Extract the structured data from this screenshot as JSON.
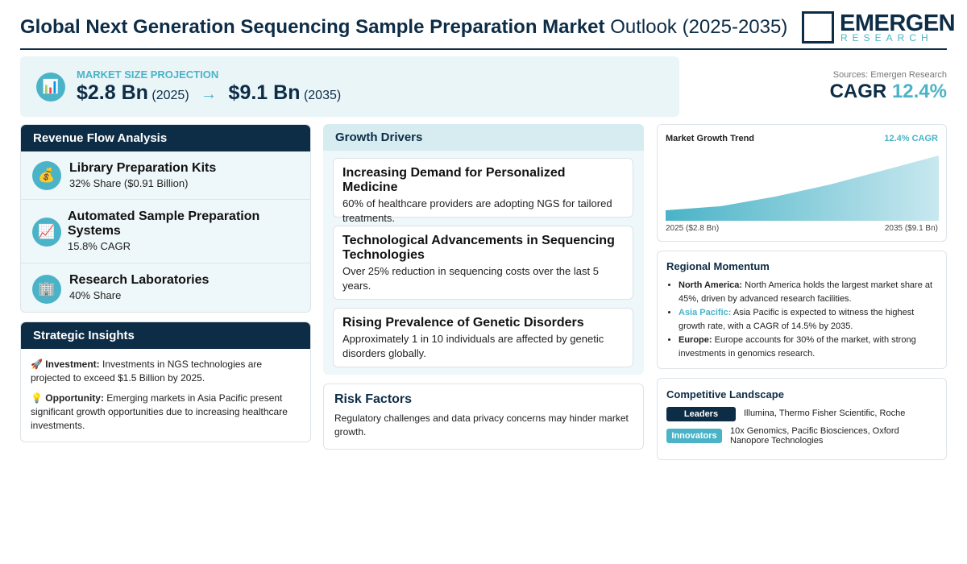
{
  "header": {
    "title_bold": "Global Next Generation Sequencing Sample Preparation Market",
    "title_rest": "Outlook (2025-2035)",
    "logo_main": "EMERGEN",
    "logo_sub": "RESEARCH"
  },
  "projection": {
    "icon": "📊",
    "label": "MARKET SIZE PROJECTION",
    "start_value": "$2.8 Bn",
    "start_year": "(2025)",
    "arrow": "→",
    "end_value": "$9.1 Bn",
    "end_year": "(2035)"
  },
  "summary": {
    "sources": "Sources: Emergen Research",
    "cagr_label": "CAGR",
    "cagr_value": "12.4%"
  },
  "revenue_flow": {
    "title": "Revenue Flow Analysis",
    "items": [
      {
        "icon": "💰",
        "name": "Library Preparation Kits",
        "detail": "32% Share ($0.91 Billion)"
      },
      {
        "icon": "📈",
        "name": "Automated Sample Preparation Systems",
        "detail": "15.8% CAGR"
      },
      {
        "icon": "🏢",
        "name": "Research Laboratories",
        "detail": "40% Share"
      }
    ]
  },
  "strategic_insights": {
    "title": "Strategic Insights",
    "items": [
      {
        "icon": "🚀",
        "label": "Investment:",
        "text": "Investments in NGS technologies are projected to exceed $1.5 Billion by 2025."
      },
      {
        "icon": "💡",
        "label": "Opportunity:",
        "text": "Emerging markets in Asia Pacific present significant growth opportunities due to increasing healthcare investments."
      }
    ]
  },
  "growth_drivers": {
    "title": "Growth Drivers",
    "items": [
      {
        "title": "Increasing Demand for Personalized Medicine",
        "text": "60% of healthcare providers are adopting NGS for tailored treatments."
      },
      {
        "title": "Technological Advancements in Sequencing Technologies",
        "text": "Over 25% reduction in sequencing costs over the last 5 years."
      },
      {
        "title": "Rising Prevalence of Genetic Disorders",
        "text": "Approximately 1 in 10 individuals are affected by genetic disorders globally."
      }
    ]
  },
  "risk_factors": {
    "title": "Risk Factors",
    "text": "Regulatory challenges and data privacy concerns may hinder market growth."
  },
  "trend": {
    "title": "Market Growth Trend",
    "badge": "12.4% CAGR",
    "start_label": "2025 ($2.8 Bn)",
    "end_label": "2035 ($9.1 Bn)"
  },
  "regional": {
    "title": "Regional Momentum",
    "items": [
      {
        "region": "North America:",
        "text": "North America holds the largest market share at 45%, driven by advanced research facilities."
      },
      {
        "region": "Asia Pacific:",
        "text": "Asia Pacific is expected to witness the highest growth rate, with a CAGR of 14.5% by 2035."
      },
      {
        "region": "Europe:",
        "text": "Europe accounts for 30% of the market, with strong investments in genomics research."
      }
    ]
  },
  "competitive": {
    "title": "Competitive Landscape",
    "rows": [
      {
        "tag": "Leaders",
        "text": "Illumina, Thermo Fisher Scientific, Roche"
      },
      {
        "tag": "Innovators",
        "text": "10x Genomics, Pacific Biosciences, Oxford Nanopore Technologies"
      }
    ]
  }
}
